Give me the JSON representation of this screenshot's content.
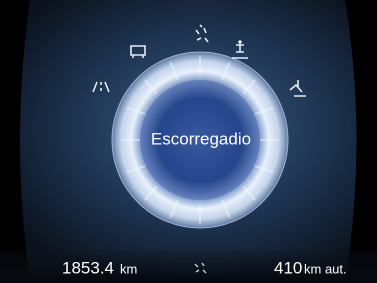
{
  "display": {
    "mode_label": "Escorregadio"
  },
  "footer": {
    "odometer": {
      "value": "1853.4",
      "unit": "km"
    },
    "range": {
      "value": "410",
      "unit": "km aut."
    }
  }
}
